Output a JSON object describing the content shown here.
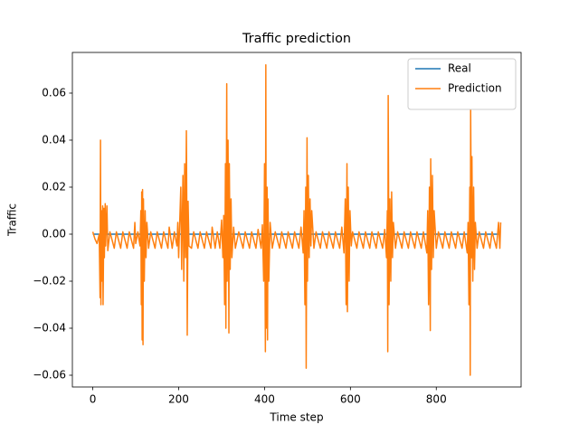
{
  "chart_data": {
    "type": "line",
    "title": "Traffic prediction",
    "x_label": "Time step",
    "y_label": "Traffic",
    "xlim": [
      -47.5,
      997.5
    ],
    "ylim": [
      -0.065,
      0.0773
    ],
    "xticks": [
      0,
      200,
      400,
      600,
      800
    ],
    "yticks": [
      {
        "value": -0.06,
        "label": "−0.06"
      },
      {
        "value": -0.04,
        "label": "−0.04"
      },
      {
        "value": -0.02,
        "label": "−0.02"
      },
      {
        "value": 0,
        "label": "0.00"
      },
      0.02,
      0.04,
      0.06
    ],
    "legend": "upper right",
    "grid": false,
    "series": [
      {
        "name": "Real",
        "color": "#1f77b4",
        "x": [
          0,
          950
        ],
        "values": [
          0,
          0
        ]
      },
      {
        "name": "Prediction",
        "color": "#ff7f0e",
        "x": [
          0,
          5,
          10,
          15,
          17,
          18,
          19,
          20,
          21,
          23,
          24,
          26,
          27,
          29,
          30,
          33,
          35,
          40,
          50,
          55,
          65,
          70,
          80,
          85,
          95,
          98,
          100,
          105,
          110,
          112,
          113,
          114,
          115,
          116,
          117,
          118,
          120,
          122,
          124,
          126,
          130,
          135,
          145,
          150,
          160,
          165,
          175,
          178,
          185,
          190,
          196,
          198,
          200,
          205,
          207,
          210,
          212,
          214,
          216,
          218,
          219,
          220,
          222,
          224,
          230,
          235,
          245,
          250,
          260,
          265,
          275,
          278,
          285,
          290,
          296,
          300,
          303,
          305,
          307,
          309,
          310,
          312,
          313,
          315,
          317,
          318,
          320,
          322,
          324,
          328,
          332,
          340,
          350,
          355,
          365,
          370,
          380,
          385,
          392,
          395,
          398,
          400,
          402,
          403,
          404,
          406,
          407,
          408,
          410,
          413,
          418,
          425,
          435,
          440,
          450,
          455,
          465,
          470,
          480,
          485,
          490,
          492,
          494,
          496,
          497,
          499,
          500,
          502,
          504,
          506,
          508,
          510,
          515,
          520,
          530,
          535,
          545,
          550,
          560,
          565,
          575,
          580,
          585,
          588,
          590,
          592,
          593,
          595,
          597,
          599,
          602,
          605,
          615,
          620,
          630,
          635,
          645,
          650,
          660,
          665,
          675,
          680,
          684,
          686,
          687,
          688,
          690,
          692,
          694,
          696,
          698,
          700,
          705,
          710,
          720,
          725,
          735,
          740,
          750,
          755,
          765,
          770,
          778,
          780,
          782,
          784,
          786,
          787,
          789,
          791,
          793,
          795,
          800,
          805,
          815,
          820,
          830,
          835,
          845,
          850,
          860,
          865,
          872,
          874,
          876,
          878,
          879,
          880,
          882,
          883,
          885,
          887,
          889,
          891,
          895,
          900,
          910,
          915,
          925,
          930,
          940,
          945,
          948,
          950
        ],
        "values": [
          0.001,
          -0.002,
          -0.004,
          0.0,
          -0.027,
          0.04,
          -0.03,
          0.01,
          -0.02,
          0.012,
          -0.03,
          0.011,
          -0.01,
          0.013,
          -0.005,
          0.012,
          -0.007,
          0.001,
          -0.006,
          0.001,
          -0.006,
          0.001,
          -0.006,
          0.001,
          -0.006,
          0.005,
          -0.004,
          0.001,
          -0.005,
          0.01,
          -0.03,
          0.018,
          -0.045,
          0.019,
          -0.047,
          0.015,
          -0.02,
          0.01,
          -0.01,
          0.005,
          -0.006,
          0.001,
          -0.006,
          0.001,
          -0.006,
          0.001,
          -0.006,
          0.003,
          -0.006,
          0.001,
          -0.005,
          0.005,
          -0.01,
          0.02,
          -0.015,
          0.025,
          -0.02,
          0.03,
          -0.01,
          0.044,
          0.01,
          -0.043,
          0.014,
          -0.005,
          -0.006,
          0.001,
          -0.006,
          0.001,
          -0.006,
          0.001,
          -0.006,
          0.003,
          -0.006,
          0.001,
          -0.006,
          0.006,
          -0.01,
          0.008,
          -0.03,
          0.03,
          -0.04,
          0.064,
          -0.02,
          0.04,
          -0.042,
          0.03,
          -0.015,
          0.015,
          -0.01,
          0.003,
          -0.006,
          0.001,
          -0.006,
          0.001,
          -0.006,
          0.001,
          -0.006,
          0.002,
          -0.006,
          0.004,
          -0.02,
          0.03,
          -0.05,
          0.072,
          -0.04,
          0.02,
          -0.045,
          0.015,
          -0.02,
          0.005,
          -0.006,
          0.001,
          -0.006,
          0.001,
          -0.006,
          0.001,
          -0.006,
          0.001,
          -0.006,
          0.003,
          -0.008,
          0.01,
          -0.03,
          0.02,
          -0.057,
          0.041,
          -0.02,
          0.025,
          -0.01,
          0.015,
          -0.005,
          0.01,
          -0.006,
          0.001,
          -0.006,
          0.001,
          -0.006,
          0.001,
          -0.006,
          0.001,
          -0.006,
          0.003,
          -0.008,
          0.015,
          -0.03,
          0.03,
          -0.033,
          0.02,
          -0.02,
          0.01,
          -0.005,
          0.001,
          -0.006,
          0.001,
          -0.006,
          0.001,
          -0.006,
          0.001,
          -0.006,
          0.001,
          -0.006,
          0.002,
          -0.01,
          0.01,
          -0.05,
          0.059,
          -0.03,
          0.015,
          -0.02,
          0.018,
          -0.01,
          0.005,
          -0.006,
          0.001,
          -0.006,
          0.001,
          -0.006,
          0.001,
          -0.006,
          0.001,
          -0.006,
          0.001,
          -0.008,
          0.01,
          -0.03,
          0.02,
          -0.041,
          0.032,
          -0.015,
          0.025,
          -0.01,
          0.01,
          -0.006,
          0.001,
          -0.006,
          0.001,
          -0.006,
          0.001,
          -0.006,
          0.001,
          -0.006,
          0.001,
          -0.008,
          0.005,
          -0.03,
          0.02,
          -0.06,
          0.053,
          -0.01,
          0.033,
          -0.02,
          0.02,
          -0.015,
          0.005,
          -0.006,
          0.001,
          -0.006,
          0.001,
          -0.006,
          0.001,
          -0.006,
          0.005,
          -0.006,
          0.005
        ]
      }
    ]
  }
}
